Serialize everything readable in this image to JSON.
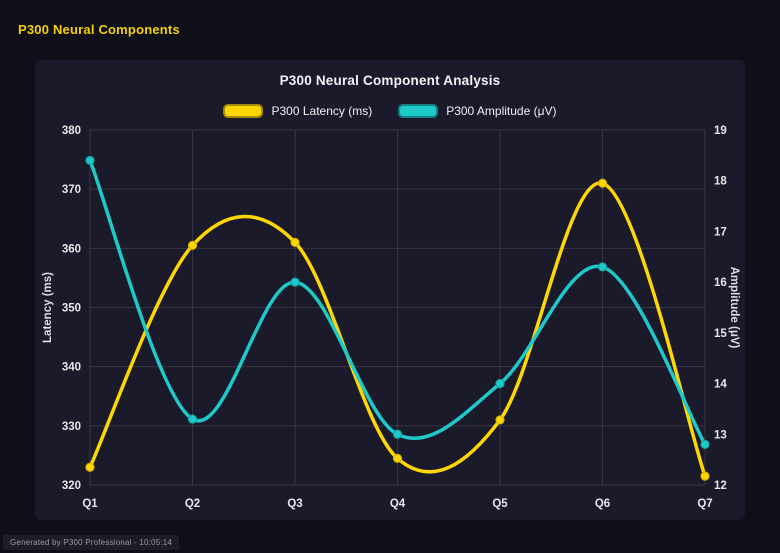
{
  "page": {
    "title": "P300 Neural Components",
    "footer": "Generated by P300 Professional - 10:05:14"
  },
  "chart_data": {
    "type": "line",
    "title": "P300 Neural Component Analysis",
    "categories": [
      "Q1",
      "Q2",
      "Q3",
      "Q4",
      "Q5",
      "Q6",
      "Q7"
    ],
    "series": [
      {
        "name": "P300 Latency (ms)",
        "axis": "left",
        "color": "#ffd700",
        "marker_stroke": "#d9b400",
        "values": [
          323,
          360.5,
          361,
          324.5,
          331,
          371,
          321.5
        ]
      },
      {
        "name": "P300 Amplitude (μV)",
        "axis": "right",
        "color": "#1ec9c9",
        "marker_stroke": "#17a8a8",
        "values": [
          18.4,
          13.3,
          16.0,
          13.0,
          14.0,
          16.3,
          12.8
        ]
      }
    ],
    "left_axis": {
      "label": "Latency (ms)",
      "min": 320,
      "max": 380,
      "step": 10
    },
    "right_axis": {
      "label": "Amplitude (μV)",
      "min": 12,
      "max": 19,
      "step": 1
    },
    "grid": true,
    "legend_position": "top",
    "line_style": "smooth"
  }
}
